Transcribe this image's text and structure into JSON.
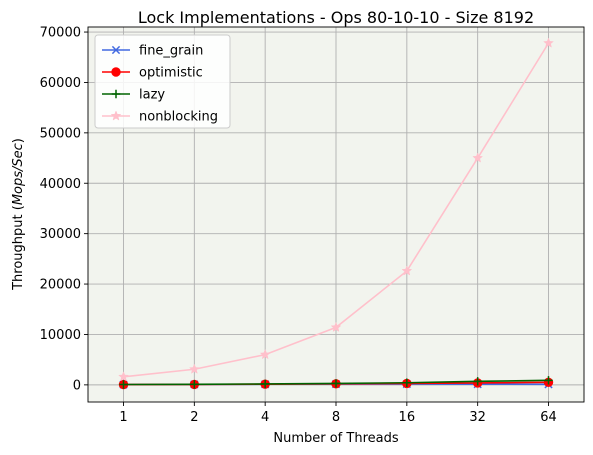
{
  "chart_data": {
    "type": "line",
    "title": "Lock Implementations - Ops 80-10-10 - Size 8192",
    "xlabel": "Number of Threads",
    "ylabel_prefix": "Throughput (",
    "ylabel_unit": "Mops/Sec",
    "ylabel_suffix": ")",
    "x": [
      "1",
      "2",
      "4",
      "8",
      "16",
      "32",
      "64"
    ],
    "ylim": [
      -3400,
      71000
    ],
    "yticks": [
      0,
      10000,
      20000,
      30000,
      40000,
      50000,
      60000,
      70000
    ],
    "grid": true,
    "legend_position": "upper-left",
    "plot_background": "#f2f4ee",
    "series": [
      {
        "name": "fine_grain",
        "color": "#4169e1",
        "marker": "x",
        "values": [
          60,
          90,
          120,
          150,
          150,
          130,
          110
        ]
      },
      {
        "name": "optimistic",
        "color": "#ff0000",
        "marker": "o",
        "values": [
          50,
          90,
          140,
          200,
          280,
          380,
          500
        ]
      },
      {
        "name": "lazy",
        "color": "#006400",
        "marker": "+",
        "values": [
          70,
          110,
          180,
          280,
          420,
          700,
          900
        ]
      },
      {
        "name": "nonblocking",
        "color": "#ffc0cb",
        "marker": "*",
        "values": [
          1600,
          3100,
          6000,
          11400,
          22600,
          45000,
          67800
        ]
      }
    ]
  }
}
